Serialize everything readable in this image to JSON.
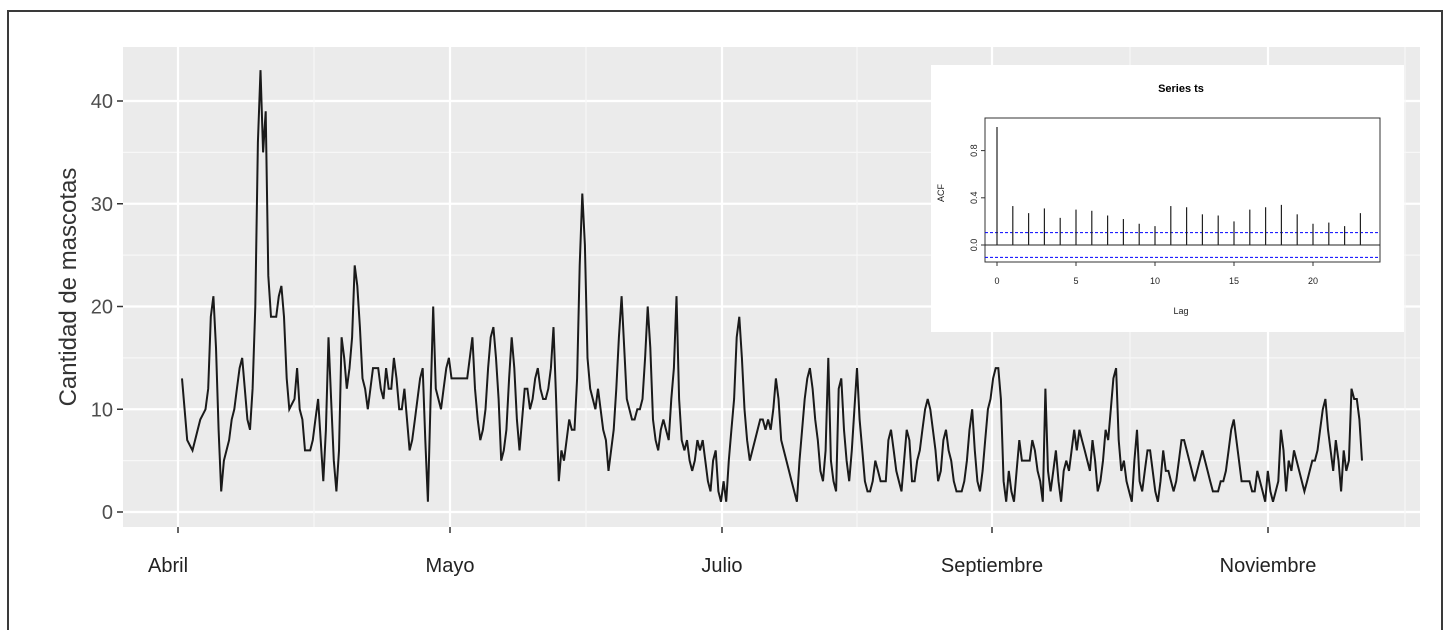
{
  "chart_data": [
    {
      "type": "line",
      "title": "",
      "xlabel": "",
      "ylabel": "Cantidad de mascotas",
      "ylim": [
        0,
        44
      ],
      "yticks": [
        0,
        10,
        20,
        30,
        40
      ],
      "xtick_labels": [
        "Abril",
        "Mayo",
        "Julio",
        "Septiembre",
        "Noviembre"
      ],
      "grid": true,
      "background_color": "#ebebeb",
      "line_color": "#1a1a1a",
      "series": [
        {
          "values": [
            13,
            10,
            7,
            6.5,
            6,
            7,
            8,
            9,
            9.5,
            10,
            12,
            19,
            21,
            16,
            8,
            2,
            5,
            6,
            7,
            9,
            10,
            12,
            14,
            15,
            12,
            9,
            8,
            12,
            20,
            36,
            43,
            35,
            39,
            23,
            19,
            19,
            19,
            21,
            22,
            19,
            13,
            10,
            10.5,
            11,
            14,
            10,
            9,
            6,
            6,
            6,
            7,
            9,
            11,
            7,
            3,
            8,
            17,
            11,
            5,
            2,
            6,
            17,
            15,
            12,
            14,
            17,
            24,
            22,
            18,
            13,
            12,
            10,
            12,
            14,
            14,
            14,
            12,
            11,
            14,
            12,
            12,
            15,
            13,
            10,
            10,
            12,
            9,
            6,
            7,
            9,
            11,
            13,
            14,
            7,
            1,
            11,
            20,
            12,
            11,
            10,
            12,
            14,
            15,
            13,
            13,
            13,
            13,
            13,
            13,
            13,
            15,
            17,
            12,
            9,
            7,
            8,
            10,
            14,
            17,
            18,
            15,
            11,
            5,
            6,
            8,
            13,
            17,
            14,
            9,
            6,
            9,
            12,
            12,
            10,
            11,
            13,
            14,
            12,
            11,
            11,
            12,
            14,
            18,
            11,
            3,
            6,
            5,
            7,
            9,
            8,
            8,
            13,
            24,
            31,
            26,
            15,
            12,
            11,
            10,
            12,
            10,
            8,
            7,
            4,
            6,
            8,
            12,
            17,
            21,
            16,
            11,
            10,
            9,
            9,
            10,
            10,
            11,
            15,
            20,
            16,
            9,
            7,
            6,
            8,
            9,
            8,
            7,
            11,
            14,
            21,
            11,
            7,
            6,
            7,
            5,
            4,
            5,
            7,
            6,
            7,
            5,
            3,
            2,
            5,
            6,
            2,
            1,
            3,
            1,
            5,
            8,
            11,
            17,
            19,
            15,
            10,
            7,
            5,
            6,
            7,
            8,
            9,
            9,
            8,
            9,
            8,
            10,
            13,
            11,
            7,
            6,
            5,
            4,
            3,
            2,
            1,
            5,
            8,
            11,
            13,
            14,
            12,
            9,
            7,
            4,
            3,
            6,
            15,
            5,
            3,
            2,
            12,
            13,
            8,
            5,
            3,
            6,
            10,
            14,
            9,
            6,
            3,
            2,
            2,
            3,
            5,
            4,
            3,
            3,
            3,
            7,
            8,
            6,
            4,
            3,
            2,
            5,
            8,
            7,
            3,
            3,
            5,
            6,
            8,
            10,
            11,
            10,
            8,
            6,
            3,
            4,
            7,
            8,
            6,
            5,
            3,
            2,
            2,
            2,
            3,
            5,
            8,
            10,
            6,
            3,
            2,
            4,
            7,
            10,
            11,
            13,
            14,
            14,
            11,
            3,
            1,
            4,
            2,
            1,
            4,
            7,
            5,
            5,
            5,
            5,
            7,
            6,
            4,
            3,
            1,
            12,
            4,
            2,
            4,
            6,
            3,
            1,
            4,
            5,
            4,
            6,
            8,
            6,
            8,
            7,
            6,
            5,
            4,
            7,
            5,
            2,
            3,
            5,
            8,
            7,
            10,
            13,
            14,
            7,
            4,
            5,
            3,
            2,
            1,
            5,
            8,
            3,
            2,
            4,
            6,
            6,
            4,
            2,
            1,
            3,
            6,
            4,
            4,
            3,
            2,
            3,
            5,
            7,
            7,
            6,
            5,
            4,
            3,
            4,
            5,
            6,
            5,
            4,
            3,
            2,
            2,
            2,
            3,
            3,
            4,
            6,
            8,
            9,
            7,
            5,
            3,
            3,
            3,
            3,
            2,
            2,
            4,
            3,
            2,
            1,
            4,
            2,
            1,
            2,
            3,
            8,
            6,
            2,
            5,
            4,
            6,
            5,
            4,
            3,
            2,
            3,
            4,
            5,
            5,
            6,
            8,
            10,
            11,
            8,
            6,
            4,
            7,
            5,
            2,
            6,
            4,
            5,
            12,
            11,
            11,
            9,
            5
          ]
        }
      ]
    },
    {
      "type": "bar",
      "title": "Series ts",
      "xlabel": "Lag",
      "ylabel": "ACF",
      "xticks": [
        0,
        5,
        10,
        15,
        20
      ],
      "yticks": [
        0.0,
        0.4,
        0.8
      ],
      "ylim": [
        -0.12,
        1.0
      ],
      "confidence_bound": 0.105,
      "confidence_color": "#0000ff",
      "lags": [
        0,
        1,
        2,
        3,
        4,
        5,
        6,
        7,
        8,
        9,
        10,
        11,
        12,
        13,
        14,
        15,
        16,
        17,
        18,
        19,
        20,
        21,
        22,
        23
      ],
      "values": [
        1.0,
        0.33,
        0.27,
        0.31,
        0.23,
        0.3,
        0.29,
        0.25,
        0.22,
        0.18,
        0.16,
        0.33,
        0.32,
        0.26,
        0.25,
        0.2,
        0.3,
        0.32,
        0.34,
        0.26,
        0.18,
        0.19,
        0.16,
        0.27
      ]
    }
  ]
}
